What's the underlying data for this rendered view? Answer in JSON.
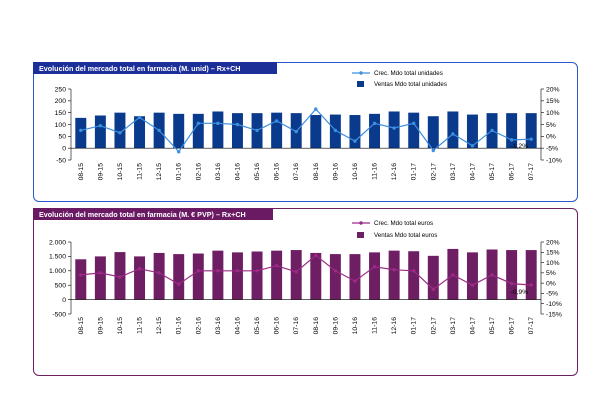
{
  "charts": [
    {
      "title": "Evolución del mercado total en farmacia (M. unid) – Rx+CH",
      "colors": {
        "bar": "#0a3a8c",
        "line": "#3d8fe0"
      },
      "chart_data": {
        "type": "bar",
        "categories": [
          "08-15",
          "09-15",
          "10-15",
          "11-15",
          "12-15",
          "01-16",
          "02-16",
          "03-16",
          "04-16",
          "05-16",
          "06-16",
          "07-16",
          "08-16",
          "09-16",
          "10-16",
          "11-16",
          "12-16",
          "01-17",
          "02-17",
          "03-17",
          "04-17",
          "05-17",
          "06-17",
          "07-17"
        ],
        "series": [
          {
            "name": "Ventas Mdo total unidades",
            "axis": "left",
            "kind": "bar",
            "values": [
              128,
              138,
              150,
              135,
              150,
              145,
              145,
              155,
              148,
              148,
              150,
              148,
              140,
              142,
              140,
              145,
              155,
              150,
              135,
              155,
              142,
              148,
              148,
              148
            ]
          },
          {
            "name": "Crec. Mdo total unidades",
            "axis": "right",
            "kind": "line",
            "values": [
              2.5,
              4.5,
              1.5,
              8,
              2.5,
              -6.5,
              5.5,
              5.5,
              5,
              2.5,
              6.5,
              2,
              11.5,
              2.5,
              -2,
              5.5,
              3.5,
              5.5,
              -6,
              1,
              -4,
              2.5,
              -1.5,
              -1.2
            ]
          }
        ],
        "left_axis": {
          "min": -50,
          "max": 250,
          "ticks": [
            -50,
            0,
            50,
            100,
            150,
            200,
            250
          ],
          "tick_labels": [
            "-50",
            "0",
            "50",
            "100",
            "150",
            "200",
            "250"
          ]
        },
        "right_axis": {
          "min": -10,
          "max": 20,
          "ticks": [
            -10,
            -5,
            0,
            5,
            10,
            15,
            20
          ],
          "tick_labels": [
            "-10%",
            "-5%",
            "0%",
            "5%",
            "10%",
            "15%",
            "20%"
          ]
        },
        "annotation": "-1,2%",
        "legend_position": "top-right"
      }
    },
    {
      "title": "Evolución del mercado total en farmacia (M. € PVP) – Rx+CH",
      "colors": {
        "bar": "#6e1f63",
        "line": "#9c2a86"
      },
      "chart_data": {
        "type": "bar",
        "categories": [
          "08-15",
          "09-15",
          "10-15",
          "11-15",
          "12-15",
          "01-16",
          "02-16",
          "03-16",
          "04-16",
          "05-16",
          "06-16",
          "07-16",
          "08-16",
          "09-16",
          "10-16",
          "11-16",
          "12-16",
          "01-17",
          "02-17",
          "03-17",
          "04-17",
          "05-17",
          "06-17",
          "07-17"
        ],
        "series": [
          {
            "name": "Ventas Mdo total euros",
            "axis": "left",
            "kind": "bar",
            "values": [
              1400,
              1500,
              1650,
              1500,
              1620,
              1580,
              1600,
              1700,
              1640,
              1670,
              1700,
              1720,
              1620,
              1580,
              1580,
              1640,
              1700,
              1680,
              1520,
              1760,
              1640,
              1740,
              1720,
              1720
            ]
          },
          {
            "name": "Crec. Mdo total euros",
            "axis": "right",
            "kind": "line",
            "values": [
              4,
              5,
              3,
              7,
              5,
              -0.5,
              6,
              6,
              6,
              6,
              8.5,
              5.5,
              13.5,
              6,
              1,
              8,
              6.5,
              6,
              -3,
              4,
              -1,
              4,
              -0.2,
              -0.9
            ]
          }
        ],
        "left_axis": {
          "min": -500,
          "max": 2000,
          "ticks": [
            -500,
            0,
            500,
            1000,
            1500,
            2000
          ],
          "tick_labels": [
            "-500",
            "0",
            "500",
            "1.000",
            "1.500",
            "2.000"
          ]
        },
        "right_axis": {
          "min": -15,
          "max": 20,
          "ticks": [
            -15,
            -10,
            -5,
            0,
            5,
            10,
            15,
            20
          ],
          "tick_labels": [
            "-15%",
            "-10%",
            "-5%",
            "0%",
            "5%",
            "10%",
            "15%",
            "20%"
          ]
        },
        "annotation": "-0,9%",
        "legend_position": "top-right"
      }
    }
  ]
}
